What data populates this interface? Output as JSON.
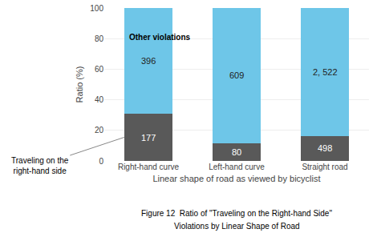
{
  "chart_data": {
    "type": "bar",
    "stacked": true,
    "categories": [
      "Right-hand curve",
      "Left-hand curve",
      "Straight road"
    ],
    "series": [
      {
        "name": "Traveling on the\nright-hand side",
        "color": "#595959",
        "values": [
          30.89,
          11.61,
          16.49
        ],
        "count_labels": [
          "177",
          "80",
          "498"
        ]
      },
      {
        "name": "Other violations",
        "color": "#6ec6e8",
        "values": [
          69.11,
          88.39,
          83.51
        ],
        "count_labels": [
          "396",
          "609",
          "2, 522"
        ]
      }
    ],
    "xlabel": "Linear shape of road as viewed by bicyclist",
    "ylabel": "Ratio (%)",
    "ylim": [
      0,
      100
    ],
    "yticks": [
      0,
      20,
      40,
      60,
      80,
      100
    ],
    "grid": true,
    "caption": [
      "Figure 12  Ratio of \"Traveling on the Right-hand Side\"",
      "Violations by Linear Shape of Road"
    ]
  }
}
